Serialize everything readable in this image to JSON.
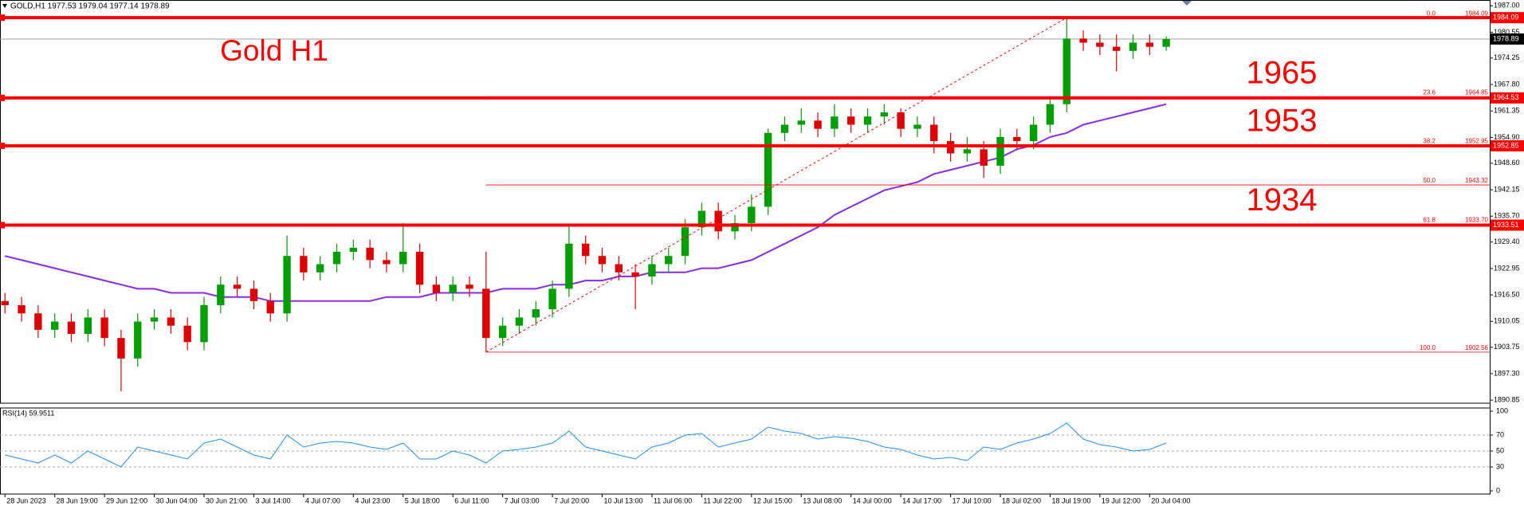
{
  "chart_data": [
    {
      "type": "candlestick",
      "header": "GOLD,H1  1977.53 1979.04 1977.14 1978.89",
      "title": "Gold H1",
      "xlim": [
        -0.3,
        89.5
      ],
      "xticks": [
        {
          "value": 0,
          "label": "28 Jun 2023"
        },
        {
          "value": 3,
          "label": "28 Jun 19:00"
        },
        {
          "value": 6,
          "label": "29 Jun 12:00"
        },
        {
          "value": 9,
          "label": "30 Jun 04:00"
        },
        {
          "value": 12,
          "label": "30 Jun 21:00"
        },
        {
          "value": 15,
          "label": "3 Jul 14:00"
        },
        {
          "value": 18,
          "label": "4 Jul 07:00"
        },
        {
          "value": 21,
          "label": "4 Jul 23:00"
        },
        {
          "value": 24,
          "label": "5 Jul 18:00"
        },
        {
          "value": 27,
          "label": "6 Jul 11:00"
        },
        {
          "value": 30,
          "label": "7 Jul 03:00"
        },
        {
          "value": 33,
          "label": "7 Jul 20:00"
        },
        {
          "value": 36,
          "label": "10 Jul 13:00"
        },
        {
          "value": 39,
          "label": "11 Jul 06:00"
        },
        {
          "value": 42,
          "label": "11 Jul 22:00"
        },
        {
          "value": 45,
          "label": "12 Jul 15:00"
        },
        {
          "value": 48,
          "label": "13 Jul 08:00"
        },
        {
          "value": 51,
          "label": "14 Jul 00:00"
        },
        {
          "value": 54,
          "label": "14 Jul 17:00"
        },
        {
          "value": 57,
          "label": "17 Jul 10:00"
        },
        {
          "value": 60,
          "label": "18 Jul 02:00"
        },
        {
          "value": 63,
          "label": "18 Jul 19:00"
        },
        {
          "value": 66,
          "label": "19 Jul 12:00"
        },
        {
          "value": 69,
          "label": "20 Jul 04:00"
        }
      ],
      "ylim": [
        1890.1,
        1988.4
      ],
      "yticks": [
        {
          "value": 1987,
          "label": "1987.00"
        },
        1980.55,
        1974.25,
        {
          "value": 1967.8,
          "label": "1967.80"
        },
        1961.35,
        {
          "value": 1954.9,
          "label": "1954.90"
        },
        {
          "value": 1948.6,
          "label": "1948.60"
        },
        1942.15,
        {
          "value": 1935.7,
          "label": "1935.70"
        },
        {
          "value": 1929.4,
          "label": "1929.40"
        },
        1922.95,
        {
          "value": 1916.5,
          "label": "1916.50"
        },
        1910.05,
        1903.75,
        {
          "value": 1897.3,
          "label": "1897.30"
        },
        1890.85
      ],
      "open": [
        1915,
        1914,
        1912,
        1908,
        1910,
        1907,
        1911,
        1906,
        1901,
        1910,
        1911,
        1909,
        1905,
        1914,
        1919,
        1918,
        1915,
        1912,
        1926,
        1922,
        1924,
        1927,
        1928,
        1925,
        1924,
        1927,
        1919,
        1917,
        1919,
        1918,
        1906,
        1909,
        1911,
        1913,
        1918,
        1929,
        1926,
        1924,
        1922,
        1921,
        1924,
        1926,
        1933,
        1937,
        1932,
        1934,
        1938,
        1956,
        1958,
        1959,
        1957,
        1960,
        1958,
        1960,
        1961,
        1957,
        1958,
        1954,
        1951,
        1952,
        1948,
        1955,
        1954,
        1958,
        1963,
        1979,
        1978,
        1977,
        1976,
        1978,
        1977
      ],
      "high": [
        1917,
        1916,
        1914,
        1912,
        1912,
        1913,
        1913,
        1908,
        1912,
        1913,
        1913,
        1911,
        1916,
        1921,
        1921,
        1920,
        1917,
        1931,
        1928,
        1926,
        1929,
        1930,
        1930,
        1927,
        1934,
        1929,
        1921,
        1921,
        1921,
        1927,
        1911,
        1913,
        1915,
        1920,
        1933.5,
        1931,
        1928,
        1926,
        1924,
        1926,
        1928,
        1935,
        1939,
        1939,
        1936,
        1941,
        1957,
        1960,
        1962,
        1961,
        1963,
        1962,
        1962,
        1963,
        1962,
        1960,
        1960,
        1956,
        1955,
        1954,
        1957,
        1957,
        1960,
        1965,
        1984.09,
        1981,
        1980,
        1980,
        1980,
        1980,
        1979.5
      ],
      "low": [
        1912,
        1910,
        1906,
        1906,
        1905,
        1905,
        1904,
        1893,
        1899,
        1908,
        1907,
        1903,
        1903,
        1912,
        1916,
        1913,
        1910,
        1910,
        1920,
        1920,
        1922,
        1925,
        1923,
        1922,
        1922,
        1917,
        1915,
        1915,
        1916,
        1902.56,
        1904,
        1907,
        1909,
        1911,
        1916,
        1924,
        1922,
        1920,
        1913,
        1919,
        1922,
        1924,
        1931,
        1930,
        1930,
        1932,
        1936,
        1954,
        1956,
        1955,
        1955,
        1956,
        1956,
        1958,
        1955,
        1955,
        1951,
        1949,
        1949,
        1945,
        1946,
        1952,
        1952,
        1956,
        1961,
        1976,
        1975,
        1971,
        1974,
        1975,
        1976
      ],
      "close": [
        1914,
        1912,
        1908,
        1910,
        1907,
        1911,
        1906,
        1901,
        1910,
        1911,
        1909,
        1905,
        1914,
        1919,
        1918,
        1915,
        1912,
        1926,
        1922,
        1924,
        1927,
        1928,
        1925,
        1924,
        1927,
        1919,
        1917,
        1919,
        1918,
        1906,
        1909,
        1911,
        1913,
        1918,
        1929,
        1926,
        1924,
        1922,
        1921,
        1924,
        1926,
        1933,
        1937,
        1932,
        1934,
        1938,
        1956,
        1958,
        1959,
        1957,
        1960,
        1958,
        1960,
        1961,
        1957,
        1958,
        1954,
        1951,
        1952,
        1948,
        1955,
        1954,
        1958,
        1963,
        1979,
        1978,
        1977,
        1976,
        1978,
        1977,
        1978.89
      ],
      "up_color": "#00a000",
      "down_color": "#e00000",
      "moving_average": {
        "color": "#8a2be2",
        "values": [
          1926,
          1925,
          1924,
          1923,
          1922,
          1921,
          1920,
          1919,
          1918,
          1918,
          1917,
          1917,
          1917,
          1916,
          1916,
          1916,
          1915,
          1915,
          1915,
          1915,
          1915,
          1915,
          1915,
          1916,
          1916,
          1916,
          1917,
          1917,
          1917,
          1917,
          1918,
          1918,
          1918,
          1919,
          1919,
          1920,
          1920,
          1921,
          1921,
          1922,
          1922,
          1922,
          1923,
          1923,
          1924,
          1925,
          1927,
          1929,
          1931,
          1933,
          1936,
          1938,
          1940,
          1942,
          1943,
          1944,
          1946,
          1947,
          1948,
          1949,
          1950,
          1952,
          1953,
          1955,
          1956,
          1958,
          1959,
          1960,
          1961,
          1962,
          1963
        ]
      },
      "last_price": 1978.89,
      "level_color": "#ff0000",
      "levels": [
        {
          "value": 1984.09
        },
        {
          "value": 1964.53,
          "note": "1965"
        },
        {
          "value": 1952.85,
          "note": "1953"
        },
        {
          "value": 1933.51,
          "note": "1934"
        }
      ],
      "fibonacci": {
        "start": 29,
        "end": 64,
        "ratios": [
          "0.0",
          "23.6",
          "38.2",
          "50.0",
          "61.8",
          "100.0"
        ],
        "values": [
          1984.09,
          1964.85,
          1952.95,
          1943.32,
          1933.7,
          1902.56
        ],
        "value_labels": [
          "1984.09",
          "1964.85",
          "1952.95",
          "1943.32",
          "1933.70",
          "1902.56"
        ]
      }
    },
    {
      "type": "line",
      "label": "RSI(14) 59.9511",
      "color": "#1e90ff",
      "ylim": [
        -4,
        104
      ],
      "yticks": [
        100,
        70,
        50,
        30,
        0
      ],
      "levels": [
        70,
        50,
        30
      ],
      "values": [
        45,
        40,
        35,
        45,
        35,
        50,
        40,
        30,
        55,
        50,
        45,
        40,
        60,
        65,
        55,
        45,
        40,
        70,
        55,
        60,
        62,
        60,
        55,
        52,
        60,
        40,
        40,
        50,
        45,
        35,
        50,
        52,
        55,
        60,
        75,
        55,
        50,
        45,
        40,
        55,
        60,
        70,
        72,
        55,
        60,
        65,
        80,
        75,
        72,
        65,
        68,
        66,
        62,
        55,
        52,
        45,
        40,
        42,
        38,
        55,
        52,
        60,
        65,
        72,
        85,
        65,
        58,
        55,
        50,
        52,
        59.9511
      ]
    }
  ]
}
